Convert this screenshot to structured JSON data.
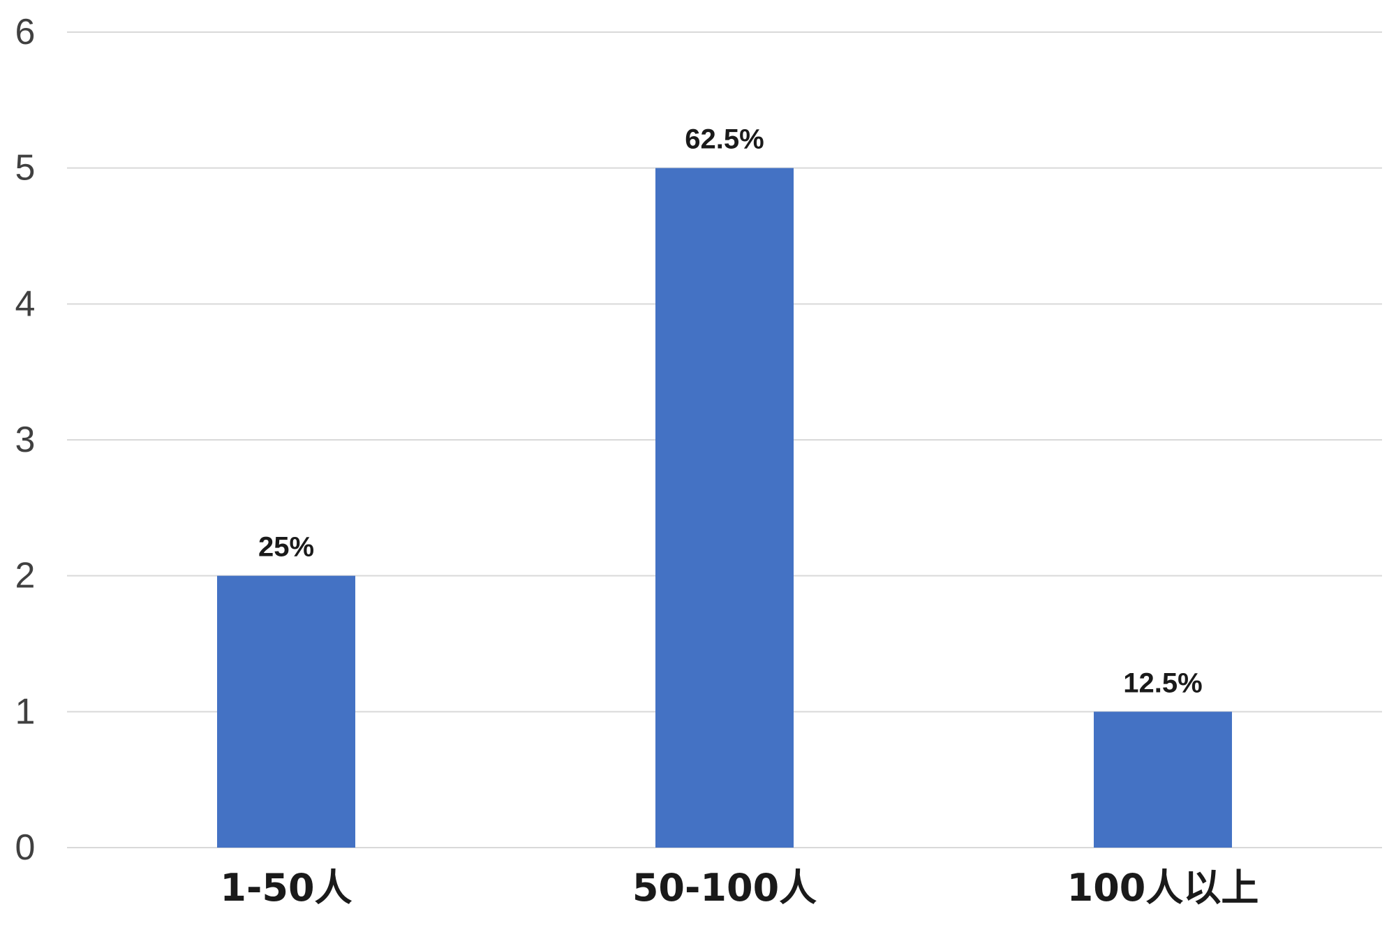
{
  "chart_data": {
    "type": "bar",
    "categories": [
      "1-50人",
      "50-100人",
      "100人以上"
    ],
    "values": [
      2,
      5,
      1
    ],
    "data_labels": [
      "25%",
      "62.5%",
      "12.5%"
    ],
    "y_ticks": [
      "0",
      "1",
      "2",
      "3",
      "4",
      "5",
      "6"
    ],
    "ylim": [
      0,
      6
    ],
    "grid": true,
    "legend": "none",
    "bar_color": "#4472c4",
    "grid_color": "#d9d9d9"
  }
}
